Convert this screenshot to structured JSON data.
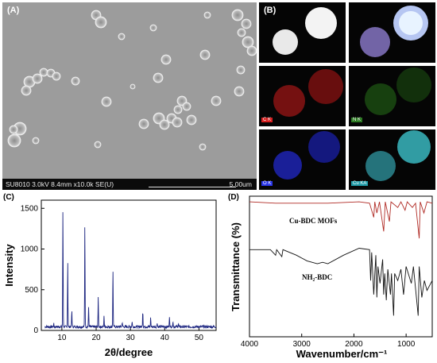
{
  "panels": {
    "a": {
      "label": "(A)",
      "info_left": "SU8010 3.0kV 8.4mm x10.0k SE(U)",
      "info_right": "5.00um"
    },
    "b": {
      "label": "(B)",
      "tiles": [
        {
          "tag": "",
          "color": "#ffffff"
        },
        {
          "tag": "",
          "color": "#cfd8ff"
        },
        {
          "tag": "C K",
          "color": "#d62020"
        },
        {
          "tag": "N K",
          "color": "#4ccd3a"
        },
        {
          "tag": "O K",
          "color": "#2a36e8"
        },
        {
          "tag": "Cu KA",
          "color": "#35d0d8"
        }
      ]
    },
    "c": {
      "label": "(C)"
    },
    "d": {
      "label": "(D)"
    }
  },
  "chart_data": [
    {
      "type": "line",
      "xlabel": "2θ/degree",
      "ylabel": "Intensity",
      "xlim": [
        4,
        55
      ],
      "ylim": [
        0,
        1600
      ],
      "xticks": [
        10,
        20,
        30,
        40,
        50
      ],
      "yticks": [
        0,
        500,
        1000,
        1500
      ],
      "color": "#1c2580",
      "baseline": 45,
      "peaks": [
        [
          7.6,
          40
        ],
        [
          10.3,
          1480
        ],
        [
          11.7,
          830
        ],
        [
          12.9,
          200
        ],
        [
          16.7,
          1290
        ],
        [
          17.8,
          240
        ],
        [
          20.6,
          350
        ],
        [
          22.3,
          130
        ],
        [
          24.9,
          710
        ],
        [
          27.6,
          60
        ],
        [
          30.5,
          70
        ],
        [
          33.6,
          200
        ],
        [
          35.9,
          110
        ],
        [
          37.8,
          55
        ],
        [
          41.4,
          130
        ],
        [
          42.4,
          75
        ],
        [
          44.0,
          45
        ]
      ]
    },
    {
      "type": "line",
      "xlabel": "Wavenumber/cm⁻¹",
      "ylabel": "Transmittance (%)",
      "xlim": [
        4000,
        500
      ],
      "xticks": [
        4000,
        3000,
        2000,
        1000
      ],
      "series": [
        {
          "name": "Cu-BDC MOFs",
          "color": "#b02a24",
          "points": [
            [
              4000,
              96
            ],
            [
              3500,
              95
            ],
            [
              2500,
              95
            ],
            [
              1900,
              96
            ],
            [
              1700,
              95
            ],
            [
              1620,
              85
            ],
            [
              1600,
              96
            ],
            [
              1560,
              88
            ],
            [
              1510,
              96
            ],
            [
              1430,
              75
            ],
            [
              1400,
              96
            ],
            [
              1320,
              82
            ],
            [
              1290,
              96
            ],
            [
              1160,
              92
            ],
            [
              1100,
              96
            ],
            [
              1020,
              90
            ],
            [
              980,
              96
            ],
            [
              880,
              92
            ],
            [
              820,
              95
            ],
            [
              750,
              70
            ],
            [
              730,
              96
            ],
            [
              660,
              88
            ],
            [
              600,
              96
            ],
            [
              500,
              95
            ]
          ]
        },
        {
          "name": "NH₂-BDC",
          "color": "#111111",
          "points": [
            [
              4000,
              62
            ],
            [
              3600,
              62
            ],
            [
              3500,
              58
            ],
            [
              3480,
              62
            ],
            [
              3380,
              57
            ],
            [
              3360,
              62
            ],
            [
              3100,
              58
            ],
            [
              2900,
              54
            ],
            [
              2700,
              52
            ],
            [
              2600,
              53
            ],
            [
              2500,
              52
            ],
            [
              2200,
              58
            ],
            [
              1900,
              63
            ],
            [
              1700,
              62
            ],
            [
              1680,
              40
            ],
            [
              1660,
              60
            ],
            [
              1620,
              30
            ],
            [
              1580,
              58
            ],
            [
              1560,
              28
            ],
            [
              1540,
              50
            ],
            [
              1500,
              38
            ],
            [
              1450,
              55
            ],
            [
              1430,
              30
            ],
            [
              1410,
              45
            ],
            [
              1380,
              26
            ],
            [
              1350,
              48
            ],
            [
              1300,
              30
            ],
            [
              1280,
              45
            ],
            [
              1240,
              15
            ],
            [
              1220,
              45
            ],
            [
              1160,
              40
            ],
            [
              1100,
              48
            ],
            [
              1050,
              30
            ],
            [
              1000,
              50
            ],
            [
              900,
              38
            ],
            [
              860,
              50
            ],
            [
              770,
              15
            ],
            [
              750,
              50
            ],
            [
              700,
              28
            ],
            [
              650,
              40
            ],
            [
              600,
              33
            ],
            [
              500,
              40
            ]
          ]
        }
      ]
    }
  ]
}
